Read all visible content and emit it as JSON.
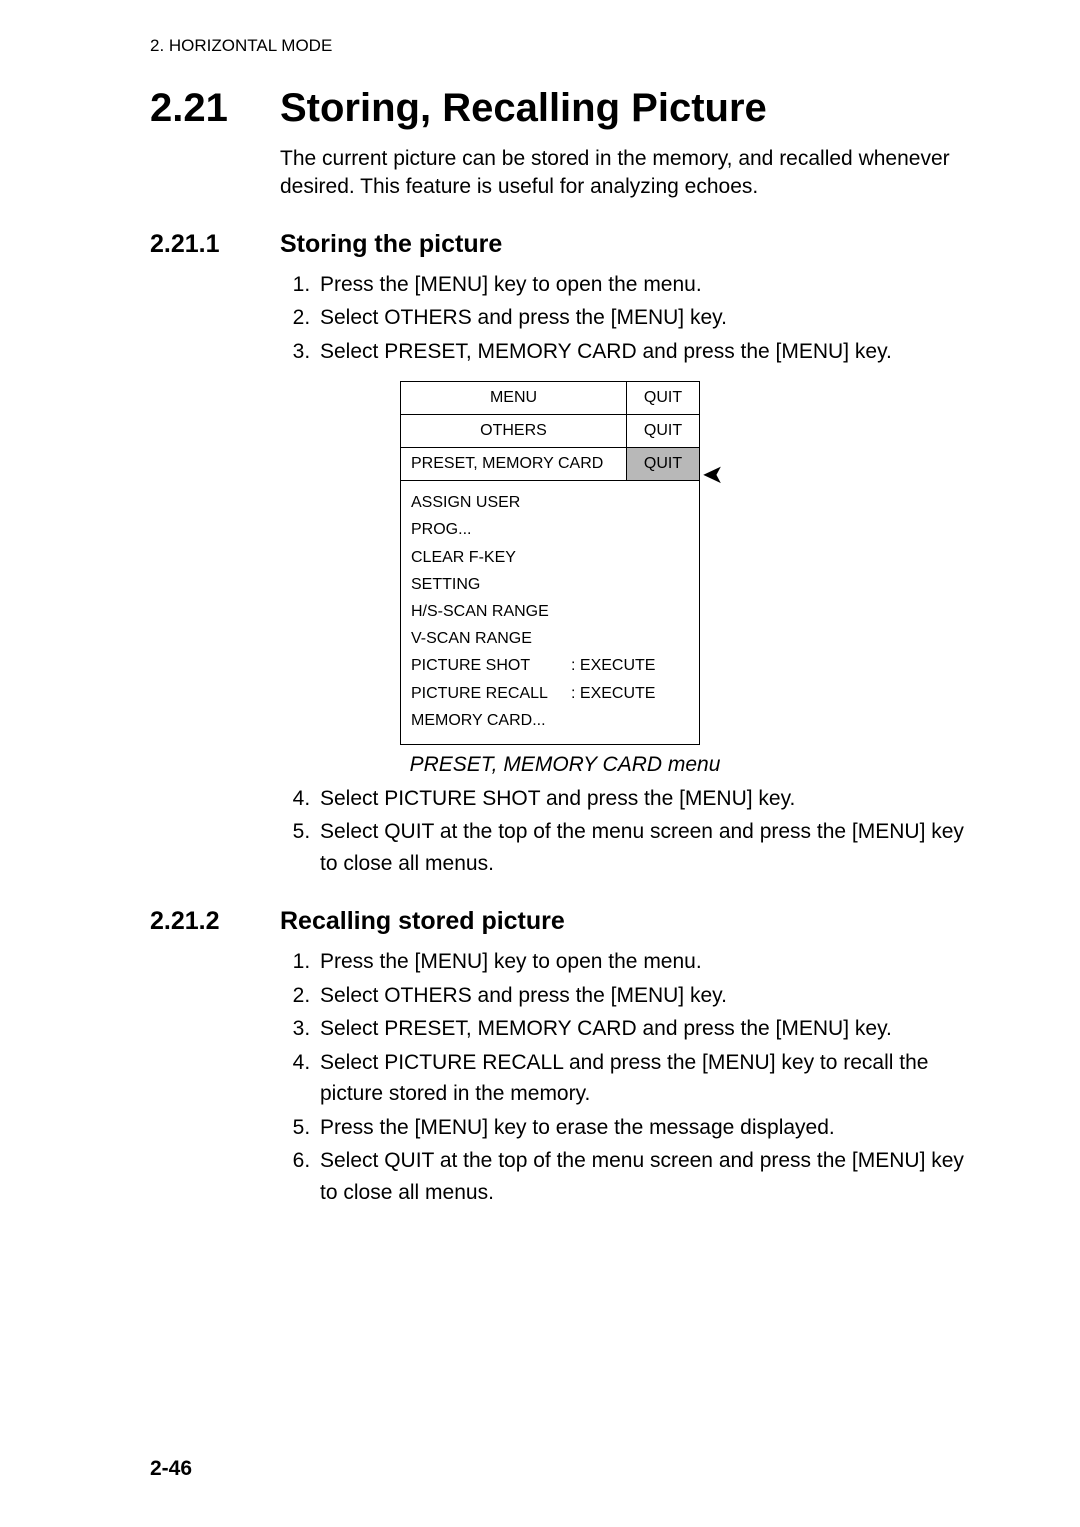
{
  "running_header": "2. HORIZONTAL MODE",
  "section": {
    "number": "2.21",
    "title": "Storing, Recalling Picture",
    "intro": "The current picture can be stored in the memory, and recalled whenever desired. This feature is useful for analyzing echoes."
  },
  "sub1": {
    "number": "2.21.1",
    "title": "Storing the picture",
    "steps": [
      "Press the [MENU] key to open the menu.",
      "Select OTHERS and press the [MENU] key.",
      "Select PRESET, MEMORY CARD and press the [MENU] key."
    ],
    "steps_after": [
      "Select PICTURE SHOT and press the [MENU] key.",
      "Select QUIT at the top of the menu screen and press the [MENU] key to close all menus."
    ]
  },
  "menu": {
    "rows": [
      {
        "left": "MENU",
        "right": "QUIT",
        "hl": false,
        "align": "center"
      },
      {
        "left": "OTHERS",
        "right": "QUIT",
        "hl": false,
        "align": "center"
      },
      {
        "left": "PRESET, MEMORY CARD",
        "right": "QUIT",
        "hl": true,
        "align": "left"
      }
    ],
    "body_lines": [
      {
        "k": "ASSIGN USER PROG...",
        "v": ""
      },
      {
        "k": "CLEAR F-KEY SETTING",
        "v": ""
      },
      {
        "k": "H/S-SCAN RANGE",
        "v": ""
      },
      {
        "k": "V-SCAN RANGE",
        "v": ""
      },
      {
        "k": "PICTURE SHOT",
        "v": ": EXECUTE"
      },
      {
        "k": "PICTURE RECALL",
        "v": ": EXECUTE"
      },
      {
        "k": "MEMORY CARD...",
        "v": ""
      }
    ],
    "caption": "PRESET, MEMORY CARD menu",
    "cursor_glyph": "➤"
  },
  "sub2": {
    "number": "2.21.2",
    "title": "Recalling stored picture",
    "steps": [
      "Press the [MENU] key to open the menu.",
      "Select OTHERS and press the [MENU] key.",
      "Select PRESET, MEMORY CARD and press the [MENU] key.",
      "Select PICTURE RECALL and press the [MENU] key to recall the picture stored in the memory.",
      "Press the [MENU] key to erase the message displayed.",
      "Select QUIT at the top of the menu screen and press the [MENU] key to close all menus."
    ]
  },
  "footer": "2-46"
}
